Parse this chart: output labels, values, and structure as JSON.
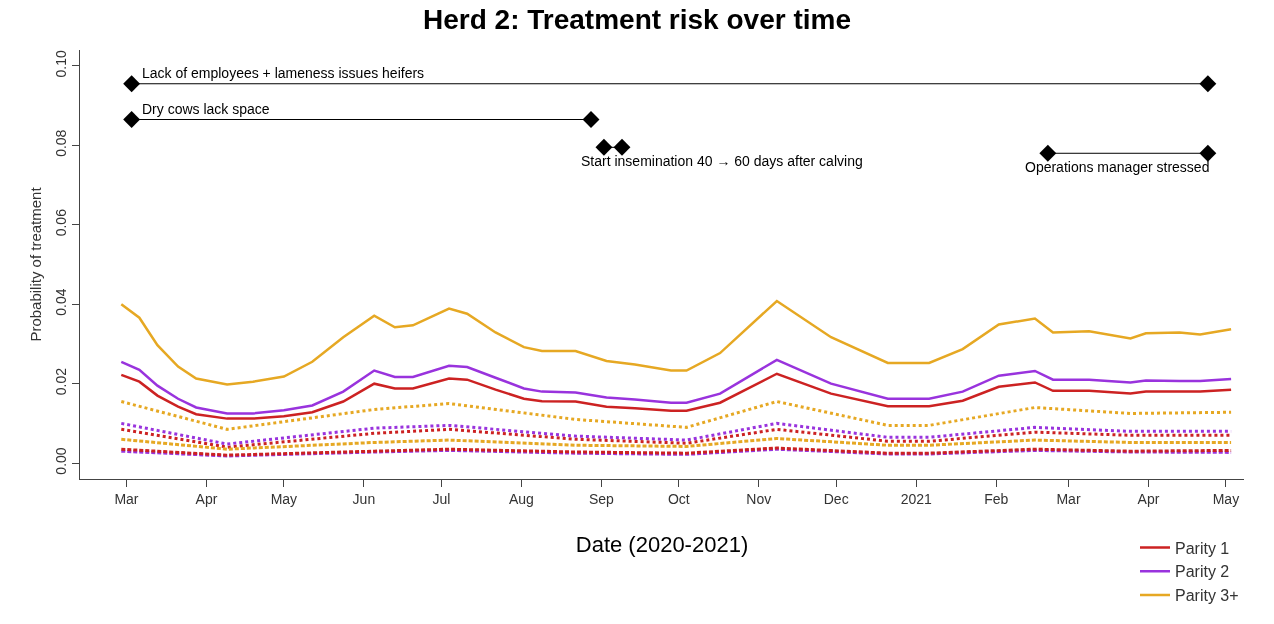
{
  "chart_data": {
    "type": "line",
    "title": "Herd 2: Treatment risk over time",
    "xlabel": "Date (2020-2021)",
    "ylabel": "Probability of treatment",
    "x": [
      "2020-02-28",
      "2020-03-06",
      "2020-03-13",
      "2020-03-21",
      "2020-03-28",
      "2020-04-09",
      "2020-04-19",
      "2020-05-01",
      "2020-05-12",
      "2020-05-24",
      "2020-06-05",
      "2020-06-13",
      "2020-06-20",
      "2020-07-04",
      "2020-07-11",
      "2020-07-22",
      "2020-08-02",
      "2020-08-09",
      "2020-08-22",
      "2020-09-03",
      "2020-09-14",
      "2020-09-28",
      "2020-10-04",
      "2020-10-17",
      "2020-11-08",
      "2020-11-29",
      "2020-12-21",
      "2021-01-06",
      "2021-01-19",
      "2021-02-02",
      "2021-02-16",
      "2021-02-23",
      "2021-03-09",
      "2021-03-25",
      "2021-03-31",
      "2021-04-13",
      "2021-04-21",
      "2021-05-03"
    ],
    "series": [
      {
        "name": "Parity 1",
        "color": "#cc2222",
        "line_style": "solid",
        "values": [
          0.0222,
          0.0205,
          0.017,
          0.0142,
          0.0123,
          0.0112,
          0.0112,
          0.0118,
          0.0128,
          0.0155,
          0.02,
          0.0188,
          0.0188,
          0.0213,
          0.021,
          0.0185,
          0.0162,
          0.0156,
          0.0155,
          0.0142,
          0.0138,
          0.0132,
          0.0132,
          0.0152,
          0.0225,
          0.0175,
          0.0143,
          0.0143,
          0.0157,
          0.0192,
          0.0203,
          0.0182,
          0.0182,
          0.0175,
          0.018,
          0.018,
          0.018,
          0.0185
        ]
      },
      {
        "name": "Parity 2",
        "color": "#9933dd",
        "line_style": "solid",
        "values": [
          0.0255,
          0.0235,
          0.0195,
          0.0162,
          0.014,
          0.0125,
          0.0125,
          0.0133,
          0.0145,
          0.018,
          0.0233,
          0.0217,
          0.0217,
          0.0245,
          0.0242,
          0.0215,
          0.0188,
          0.018,
          0.0178,
          0.0165,
          0.016,
          0.0152,
          0.0152,
          0.0175,
          0.026,
          0.02,
          0.0162,
          0.0162,
          0.018,
          0.022,
          0.0232,
          0.021,
          0.021,
          0.0203,
          0.0208,
          0.0207,
          0.0207,
          0.0212
        ]
      },
      {
        "name": "Parity 3+",
        "color": "#e6a823",
        "line_style": "solid",
        "values": [
          0.04,
          0.0366,
          0.0297,
          0.0243,
          0.0213,
          0.0198,
          0.0205,
          0.0218,
          0.0255,
          0.0317,
          0.0371,
          0.0342,
          0.0347,
          0.0389,
          0.0376,
          0.0329,
          0.0292,
          0.0282,
          0.0282,
          0.0257,
          0.0248,
          0.0233,
          0.0233,
          0.0277,
          0.0408,
          0.0317,
          0.0252,
          0.0252,
          0.0287,
          0.0349,
          0.0364,
          0.0329,
          0.0332,
          0.0314,
          0.0327,
          0.0329,
          0.0324,
          0.0337
        ]
      },
      {
        "color": "#cc2222",
        "line_style": "dotted",
        "x": [
          "2020-02-28",
          "2020-04-09",
          "2020-06-05",
          "2020-07-04",
          "2020-08-22",
          "2020-10-04",
          "2020-11-08",
          "2020-12-21",
          "2021-01-06",
          "2021-02-16",
          "2021-03-25",
          "2021-05-03"
        ],
        "values": [
          0.0085,
          0.004,
          0.0075,
          0.0085,
          0.006,
          0.005,
          0.0085,
          0.0055,
          0.0055,
          0.0078,
          0.007,
          0.007
        ]
      },
      {
        "color": "#9933dd",
        "line_style": "dotted",
        "x": [
          "2020-02-28",
          "2020-04-09",
          "2020-06-05",
          "2020-07-04",
          "2020-08-22",
          "2020-10-04",
          "2020-11-08",
          "2020-12-21",
          "2021-01-06",
          "2021-02-16",
          "2021-03-25",
          "2021-05-03"
        ],
        "values": [
          0.01,
          0.0048,
          0.0088,
          0.0095,
          0.0068,
          0.0058,
          0.01,
          0.0065,
          0.0065,
          0.009,
          0.008,
          0.008
        ]
      },
      {
        "color": "#e6a823",
        "line_style": "dotted",
        "x": [
          "2020-02-28",
          "2020-04-09",
          "2020-06-05",
          "2020-07-04",
          "2020-08-22",
          "2020-10-04",
          "2020-11-08",
          "2020-12-21",
          "2021-01-06",
          "2021-02-16",
          "2021-03-25",
          "2021-05-03"
        ],
        "values": [
          0.0155,
          0.0085,
          0.0135,
          0.015,
          0.011,
          0.009,
          0.0155,
          0.0095,
          0.0095,
          0.014,
          0.0125,
          0.0128
        ]
      },
      {
        "color": "#9933dd",
        "line_style": "dashed",
        "x": [
          "2020-02-28",
          "2020-04-09",
          "2020-06-05",
          "2020-07-04",
          "2020-08-22",
          "2020-10-04",
          "2020-11-08",
          "2020-12-21",
          "2021-01-06",
          "2021-02-16",
          "2021-03-25",
          "2021-05-03"
        ],
        "values": [
          0.003,
          0.0018,
          0.0028,
          0.0032,
          0.0025,
          0.0022,
          0.0035,
          0.0023,
          0.0023,
          0.0032,
          0.0028,
          0.0027
        ]
      },
      {
        "color": "#cc2222",
        "line_style": "dashed",
        "x": [
          "2020-02-28",
          "2020-04-09",
          "2020-06-05",
          "2020-07-04",
          "2020-08-22",
          "2020-10-04",
          "2020-11-08",
          "2020-12-21",
          "2021-01-06",
          "2021-02-16",
          "2021-03-25",
          "2021-05-03"
        ],
        "values": [
          0.0035,
          0.002,
          0.003,
          0.0035,
          0.0028,
          0.0025,
          0.0038,
          0.0025,
          0.0025,
          0.0035,
          0.003,
          0.0032
        ]
      },
      {
        "color": "#e6a823",
        "line_style": "dashed",
        "x": [
          "2020-02-28",
          "2020-04-09",
          "2020-06-05",
          "2020-07-04",
          "2020-08-22",
          "2020-10-04",
          "2020-11-08",
          "2020-12-21",
          "2021-01-06",
          "2021-02-16",
          "2021-03-25",
          "2021-05-03"
        ],
        "values": [
          0.006,
          0.0035,
          0.0052,
          0.0058,
          0.0045,
          0.0042,
          0.0062,
          0.0045,
          0.0045,
          0.0058,
          0.0052,
          0.0052
        ]
      },
      {
        "color": "#000000",
        "line_style": "solid",
        "marker": "diamond",
        "x": [
          "2020-03-03",
          "2021-04-24"
        ],
        "values": [
          0.0955,
          0.0955
        ]
      },
      {
        "color": "#000000",
        "line_style": "solid",
        "marker": "diamond",
        "x": [
          "2020-03-03",
          "2020-08-28"
        ],
        "values": [
          0.0865,
          0.0865
        ]
      },
      {
        "color": "#000000",
        "line_style": "solid",
        "marker": "diamond",
        "x": [
          "2020-09-02",
          "2020-09-09"
        ],
        "values": [
          0.0795,
          0.0795
        ]
      },
      {
        "color": "#000000",
        "line_style": "solid",
        "marker": "diamond",
        "x": [
          "2021-02-21",
          "2021-04-24"
        ],
        "values": [
          0.078,
          0.078
        ]
      }
    ],
    "annotations": [
      {
        "text": "Lack of employees + lameness issues heifers",
        "x": "2020-03-03",
        "y": 0.0955
      },
      {
        "text": "Dry cows lack space",
        "x": "2020-03-03",
        "y": 0.0865
      },
      {
        "text": "Start insemination 40 → 60 days after calving",
        "x": "2020-09-02",
        "y": 0.0795
      },
      {
        "text": "Operations manager stressed",
        "x": "2021-02-21",
        "y": 0.078
      }
    ],
    "xlim": [
      "2020-02-12",
      "2021-05-08"
    ],
    "xticks": [
      {
        "value": "2020-03-01",
        "label": "Mar"
      },
      {
        "value": "2020-04-01",
        "label": "Apr"
      },
      {
        "value": "2020-05-01",
        "label": "May"
      },
      {
        "value": "2020-06-01",
        "label": "Jun"
      },
      {
        "value": "2020-07-01",
        "label": "Jul"
      },
      {
        "value": "2020-08-01",
        "label": "Aug"
      },
      {
        "value": "2020-09-01",
        "label": "Sep"
      },
      {
        "value": "2020-10-01",
        "label": "Oct"
      },
      {
        "value": "2020-11-01",
        "label": "Nov"
      },
      {
        "value": "2020-12-01",
        "label": "Dec"
      },
      {
        "value": "2021-01-01",
        "label": "2021"
      },
      {
        "value": "2021-02-01",
        "label": "Feb"
      },
      {
        "value": "2021-03-01",
        "label": "Mar"
      },
      {
        "value": "2021-04-01",
        "label": "Apr"
      },
      {
        "value": "2021-05-01",
        "label": "May"
      }
    ],
    "ylim": [
      -0.004,
      0.104
    ],
    "yticks": [
      {
        "value": 0,
        "label": "0.00"
      },
      {
        "value": 0.02,
        "label": "0.02"
      },
      {
        "value": 0.04,
        "label": "0.04"
      },
      {
        "value": 0.06,
        "label": "0.06"
      },
      {
        "value": 0.08,
        "label": "0.08"
      },
      {
        "value": 0.1,
        "label": "0.10"
      }
    ],
    "grid": false,
    "legend": "bottom right",
    "marker": "none"
  }
}
